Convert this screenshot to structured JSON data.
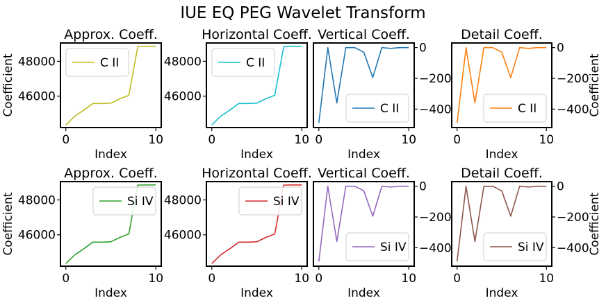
{
  "figure": {
    "suptitle": "IUE EQ PEG Wavelet Transform"
  },
  "axes_style": {
    "xlabel": "Index",
    "ylabel": "Coefficient"
  },
  "chart_data": [
    {
      "type": "line",
      "title": "Approx. Coeff.",
      "xlabel": "Index",
      "ylabel": "Coefficient",
      "xlim": [
        -0.6,
        10.6
      ],
      "ylim": [
        44200,
        49050
      ],
      "xticks": [
        0,
        10
      ],
      "yticks": [
        46000,
        48000
      ],
      "ytick_labels": [
        "46000",
        "48000"
      ],
      "legend_loc": "upper-left",
      "series": [
        {
          "name": "C II",
          "color": "#bcbd22",
          "x": [
            0,
            1,
            2,
            3,
            4,
            5,
            6,
            7,
            8,
            9,
            10
          ],
          "y": [
            44350,
            44850,
            45200,
            45580,
            45580,
            45600,
            45850,
            46050,
            48850,
            48860,
            48860
          ]
        }
      ]
    },
    {
      "type": "line",
      "title": "Horizontal Coeff.",
      "xlabel": "Index",
      "ylabel": "",
      "xlim": [
        -0.6,
        10.6
      ],
      "ylim": [
        44200,
        49050
      ],
      "xticks": [
        0,
        10
      ],
      "yticks": [
        46000,
        48000
      ],
      "ytick_labels": [
        "46000",
        "48000"
      ],
      "legend_loc": "upper-left",
      "series": [
        {
          "name": "C II",
          "color": "#17becf",
          "x": [
            0,
            1,
            2,
            3,
            4,
            5,
            6,
            7,
            8,
            9,
            10
          ],
          "y": [
            44350,
            44850,
            45200,
            45580,
            45580,
            45600,
            45850,
            46050,
            48850,
            48860,
            48860
          ]
        }
      ]
    },
    {
      "type": "line",
      "title": "Vertical Coeff.",
      "xlabel": "Index",
      "ylabel": "",
      "xlim": [
        -0.6,
        10.6
      ],
      "ylim": [
        -520,
        30
      ],
      "xticks": [
        0,
        10
      ],
      "yticks": [
        0,
        -200,
        -400
      ],
      "ytick_labels": [
        "0",
        "−200",
        "−400"
      ],
      "yaxis_side": "right",
      "legend_loc": "lower-right",
      "series": [
        {
          "name": "C II",
          "color": "#1f77b4",
          "x": [
            0,
            1,
            2,
            3,
            4,
            5,
            6,
            7,
            8,
            9,
            10
          ],
          "y": [
            -490,
            0,
            -360,
            0,
            0,
            -30,
            -195,
            0,
            -5,
            0,
            0
          ]
        }
      ]
    },
    {
      "type": "line",
      "title": "Detail Coeff.",
      "xlabel": "Index",
      "ylabel": "Coefficient",
      "xlim": [
        -0.6,
        10.6
      ],
      "ylim": [
        -520,
        30
      ],
      "xticks": [
        0,
        10
      ],
      "yticks": [
        0,
        -200,
        -400
      ],
      "ytick_labels": [
        "0",
        "−200",
        "−400"
      ],
      "yaxis_side": "right",
      "legend_loc": "lower-right",
      "series": [
        {
          "name": "C II",
          "color": "#ff7f0e",
          "x": [
            0,
            1,
            2,
            3,
            4,
            5,
            6,
            7,
            8,
            9,
            10
          ],
          "y": [
            -490,
            0,
            -360,
            0,
            0,
            -30,
            -195,
            0,
            -5,
            0,
            0
          ]
        }
      ]
    },
    {
      "type": "line",
      "title": "Approx. Coeff.",
      "xlabel": "Index",
      "ylabel": "Coefficient",
      "xlim": [
        -0.6,
        10.6
      ],
      "ylim": [
        44200,
        49050
      ],
      "xticks": [
        0,
        10
      ],
      "yticks": [
        46000,
        48000
      ],
      "ytick_labels": [
        "46000",
        "48000"
      ],
      "legend_loc": "upper-right",
      "series": [
        {
          "name": "Si IV",
          "color": "#2ca02c",
          "x": [
            0,
            1,
            2,
            3,
            4,
            5,
            6,
            7,
            8,
            9,
            10
          ],
          "y": [
            44350,
            44850,
            45200,
            45580,
            45580,
            45600,
            45850,
            46050,
            48850,
            48860,
            48860
          ]
        }
      ]
    },
    {
      "type": "line",
      "title": "Horizontal Coeff.",
      "xlabel": "Index",
      "ylabel": "",
      "xlim": [
        -0.6,
        10.6
      ],
      "ylim": [
        44200,
        49050
      ],
      "xticks": [
        0,
        10
      ],
      "yticks": [
        46000,
        48000
      ],
      "ytick_labels": [
        "46000",
        "48000"
      ],
      "legend_loc": "upper-right",
      "series": [
        {
          "name": "Si IV",
          "color": "#d62728",
          "x": [
            0,
            1,
            2,
            3,
            4,
            5,
            6,
            7,
            8,
            9,
            10
          ],
          "y": [
            44350,
            44850,
            45200,
            45580,
            45580,
            45600,
            45850,
            46050,
            48850,
            48860,
            48860
          ]
        }
      ]
    },
    {
      "type": "line",
      "title": "Vertical Coeff.",
      "xlabel": "Index",
      "ylabel": "",
      "xlim": [
        -0.6,
        10.6
      ],
      "ylim": [
        -520,
        30
      ],
      "xticks": [
        0,
        10
      ],
      "yticks": [
        0,
        -200,
        -400
      ],
      "ytick_labels": [
        "0",
        "−200",
        "−400"
      ],
      "yaxis_side": "right",
      "legend_loc": "lower-right",
      "series": [
        {
          "name": "Si IV",
          "color": "#9467bd",
          "x": [
            0,
            1,
            2,
            3,
            4,
            5,
            6,
            7,
            8,
            9,
            10
          ],
          "y": [
            -490,
            0,
            -360,
            0,
            0,
            -30,
            -195,
            0,
            -5,
            0,
            0
          ]
        }
      ]
    },
    {
      "type": "line",
      "title": "Detail Coeff.",
      "xlabel": "Index",
      "ylabel": "Coefficient",
      "xlim": [
        -0.6,
        10.6
      ],
      "ylim": [
        -520,
        30
      ],
      "xticks": [
        0,
        10
      ],
      "yticks": [
        0,
        -200,
        -400
      ],
      "ytick_labels": [
        "0",
        "−200",
        "−400"
      ],
      "yaxis_side": "right",
      "legend_loc": "lower-right",
      "series": [
        {
          "name": "Si IV",
          "color": "#8c564b",
          "x": [
            0,
            1,
            2,
            3,
            4,
            5,
            6,
            7,
            8,
            9,
            10
          ],
          "y": [
            -490,
            0,
            -360,
            0,
            0,
            -30,
            -195,
            0,
            -5,
            0,
            0
          ]
        }
      ]
    }
  ]
}
